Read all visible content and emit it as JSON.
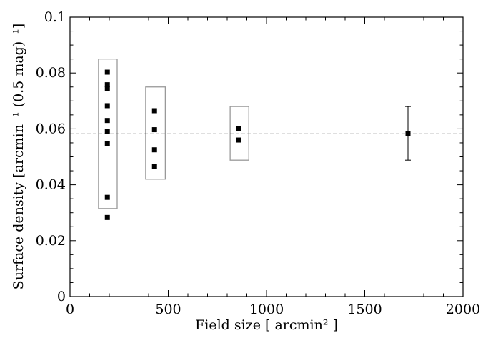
{
  "chart_data": {
    "type": "scatter",
    "title": "",
    "xlabel": "Field size  [ arcmin² ]",
    "ylabel": "Surface density  [arcmin⁻¹ (0.5 mag)⁻¹]",
    "xlim": [
      0,
      2000
    ],
    "ylim": [
      0,
      0.1
    ],
    "x_ticks": [
      0,
      500,
      1000,
      1500,
      2000
    ],
    "x_tick_labels": [
      "0",
      "500",
      "1000",
      "1500",
      "2000"
    ],
    "y_ticks": [
      0,
      0.02,
      0.04,
      0.06,
      0.08,
      0.1
    ],
    "y_tick_labels": [
      "0",
      "0.02",
      "0.04",
      "0.06",
      "0.08",
      "0.1"
    ],
    "grid": false,
    "reference_line": {
      "y": 0.0582,
      "style": "dashed"
    },
    "points": [
      {
        "x": 190,
        "y": 0.0803
      },
      {
        "x": 190,
        "y": 0.0758
      },
      {
        "x": 190,
        "y": 0.0745
      },
      {
        "x": 190,
        "y": 0.0683
      },
      {
        "x": 190,
        "y": 0.063
      },
      {
        "x": 190,
        "y": 0.059
      },
      {
        "x": 190,
        "y": 0.0548
      },
      {
        "x": 190,
        "y": 0.0355
      },
      {
        "x": 190,
        "y": 0.0283
      },
      {
        "x": 430,
        "y": 0.0665
      },
      {
        "x": 430,
        "y": 0.0597
      },
      {
        "x": 430,
        "y": 0.0525
      },
      {
        "x": 430,
        "y": 0.0465
      },
      {
        "x": 860,
        "y": 0.0602
      },
      {
        "x": 860,
        "y": 0.056
      }
    ],
    "range_boxes": [
      {
        "x_min": 145,
        "x_max": 240,
        "y_min": 0.0315,
        "y_max": 0.085
      },
      {
        "x_min": 385,
        "x_max": 485,
        "y_min": 0.042,
        "y_max": 0.075
      },
      {
        "x_min": 815,
        "x_max": 910,
        "y_min": 0.0488,
        "y_max": 0.068
      }
    ],
    "error_bar_point": {
      "x": 1720,
      "y": 0.0582,
      "y_low": 0.0488,
      "y_high": 0.068
    },
    "colors": {
      "points": "#000000",
      "boxes": "#999999",
      "axes": "#000000"
    }
  }
}
